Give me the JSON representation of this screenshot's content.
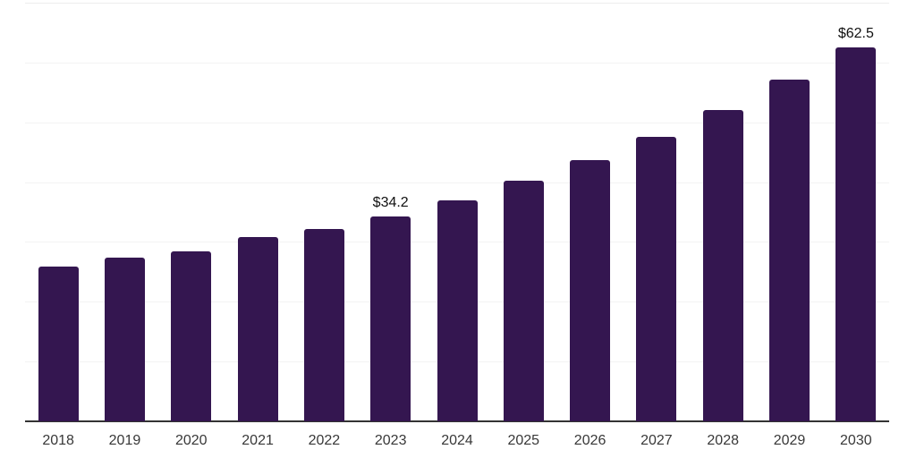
{
  "chart": {
    "background_color": "#ffffff",
    "bar_color": "#341650",
    "gridline_color": "#f3f3f3",
    "top_gridline_color": "#ededed",
    "axis_line_color": "#333333",
    "tick_label_color": "#383838",
    "data_label_color": "#111111"
  },
  "chart_data": {
    "type": "bar",
    "title": "",
    "xlabel": "",
    "ylabel": "",
    "categories": [
      "2018",
      "2019",
      "2020",
      "2021",
      "2022",
      "2023",
      "2024",
      "2025",
      "2026",
      "2027",
      "2028",
      "2029",
      "2030"
    ],
    "values": [
      25.9,
      27.4,
      28.4,
      30.8,
      32.2,
      34.2,
      36.9,
      40.2,
      43.7,
      47.5,
      52.1,
      57.1,
      62.5
    ],
    "data_labels": {
      "2023": "$34.2",
      "2030": "$62.5"
    },
    "ylim": [
      0,
      70
    ],
    "y_gridlines": [
      10,
      20,
      30,
      40,
      50,
      60,
      70
    ],
    "y_axis_labels_visible": false,
    "legend": "none",
    "grid": "horizontal"
  }
}
